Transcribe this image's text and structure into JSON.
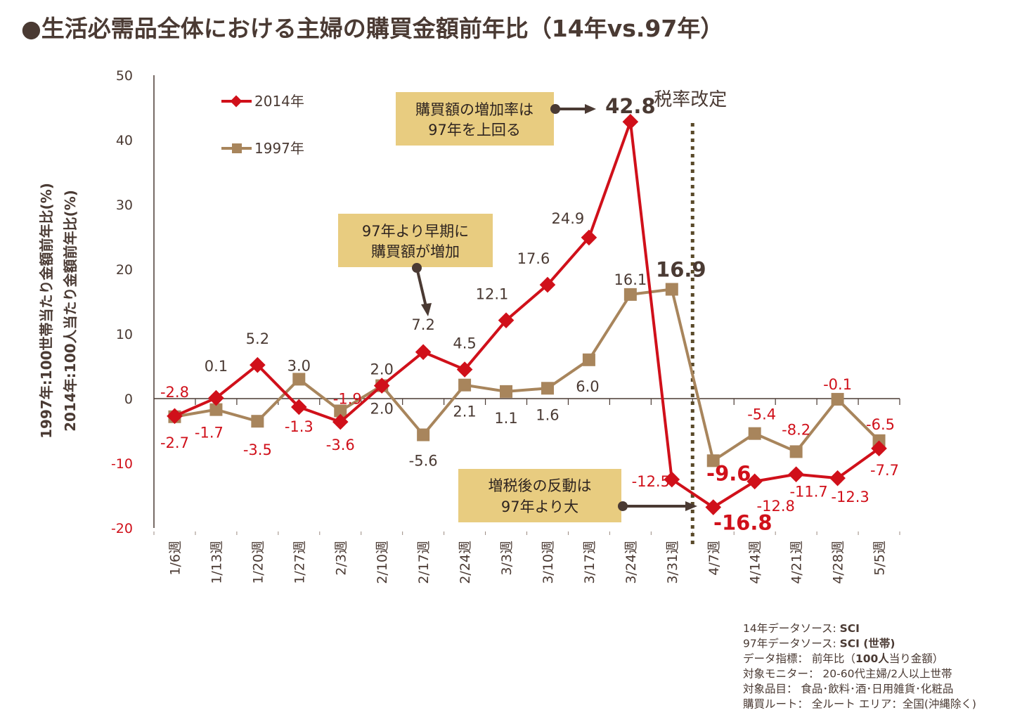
{
  "title": "●生活必需品全体における主婦の購買金額前年比（14年vs.97年）",
  "colors": {
    "series_2014": "#d0101a",
    "series_1997": "#a8855c",
    "text": "#4a3a33",
    "callout_bg": "#e8cc80",
    "tax_line": "#5a4a2a"
  },
  "chart_data": {
    "type": "line",
    "title": "生活必需品全体における主婦の購買金額前年比（14年vs.97年）",
    "xlabel": "",
    "ylabel_lines": [
      "1997年:100世帯当たり金額前年比(%)",
      "2014年:100人当たり金額前年比(%)"
    ],
    "ylim": [
      -20,
      50
    ],
    "yticks": [
      "50",
      "40",
      "30",
      "20",
      "10",
      "0",
      "-10",
      "-20"
    ],
    "ytick_values": [
      50,
      40,
      30,
      20,
      10,
      0,
      -10,
      -20
    ],
    "grid": false,
    "legend_position": "top-left",
    "categories": [
      "1/6週",
      "1/13週",
      "1/20週",
      "1/27週",
      "2/3週",
      "2/10週",
      "2/17週",
      "2/24週",
      "3/3週",
      "3/10週",
      "3/17週",
      "3/24週",
      "3/31週",
      "4/7週",
      "4/14週",
      "4/21週",
      "4/28週",
      "5/5週"
    ],
    "series": [
      {
        "name": "2014年",
        "marker": "diamond",
        "values": [
          -2.7,
          0.1,
          5.2,
          -1.3,
          -3.6,
          2.0,
          7.2,
          4.5,
          12.1,
          17.6,
          24.9,
          42.8,
          -12.5,
          -16.8,
          -12.8,
          -11.7,
          -12.3,
          -7.7
        ],
        "labels": [
          "-2.7",
          "0.1",
          "5.2",
          "-1.3",
          "-3.6",
          "2.0",
          "7.2",
          "4.5",
          "12.1",
          "17.6",
          "24.9",
          "42.8",
          "-12.5",
          "-16.8",
          "-12.8",
          "-11.7",
          "-12.3",
          "-7.7"
        ]
      },
      {
        "name": "1997年",
        "marker": "square",
        "values": [
          -2.8,
          -1.7,
          -3.5,
          3.0,
          -1.9,
          2.0,
          -5.6,
          2.1,
          1.1,
          1.6,
          6.0,
          16.1,
          16.9,
          -9.6,
          -5.4,
          -8.2,
          -0.1,
          -6.5
        ],
        "labels": [
          "-2.8",
          "-1.7",
          "-3.5",
          "3.0",
          "-1.9",
          "2.0",
          "-5.6",
          "2.1",
          "1.1",
          "1.6",
          "6.0",
          "16.1",
          "16.9",
          "-9.6",
          "-5.4",
          "-8.2",
          "-0.1",
          "-6.5"
        ]
      }
    ],
    "annotations": {
      "tax_change_label": "税率改定",
      "tax_change_between": [
        "3/31週",
        "4/7週"
      ],
      "callouts": [
        {
          "lines": [
            "購買額の増加率は",
            "97年を上回る"
          ],
          "points_to": "42.8"
        },
        {
          "lines": [
            "97年より早期に",
            "購買額が増加"
          ],
          "points_to": "7.2"
        },
        {
          "lines": [
            "増税後の反動は",
            "97年より大"
          ],
          "points_to": "-16.8"
        }
      ]
    }
  },
  "notes": [
    {
      "prefix": "14年データソース: ",
      "bold": "SCI",
      "suffix": ""
    },
    {
      "prefix": "97年データソース: ",
      "bold": "SCI (世帯)",
      "suffix": ""
    },
    {
      "prefix": "データ指標： 前年比（",
      "bold": "100人",
      "suffix": "当り金額）"
    },
    {
      "prefix": "対象モニター： 20-60代主婦/2人以上世帯",
      "bold": "",
      "suffix": ""
    },
    {
      "prefix": "対象品目： 食品･飲料･酒･日用雑貨･化粧品",
      "bold": "",
      "suffix": ""
    },
    {
      "prefix": "購買ルート： 全ルート エリア：全国(沖縄除く)",
      "bold": "",
      "suffix": ""
    }
  ]
}
